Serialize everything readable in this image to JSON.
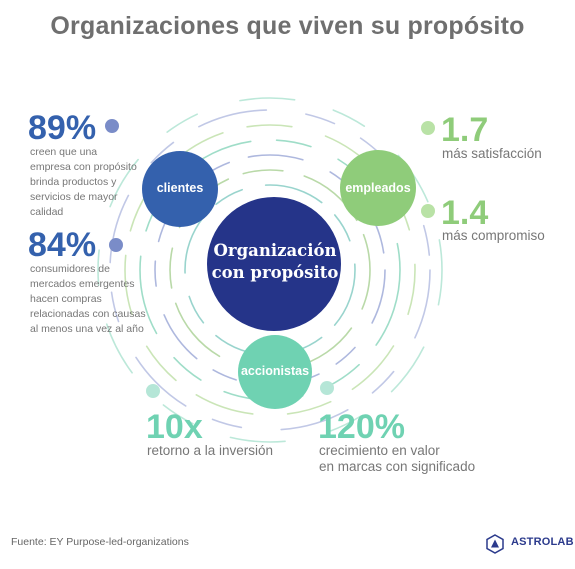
{
  "title": "Organizaciones que viven su propósito",
  "center": {
    "line1": "Organización",
    "line2": "con propósito"
  },
  "stakeholders": [
    {
      "label": "clientes",
      "color": "#3461ad"
    },
    {
      "label": "empleados",
      "color": "#8fcc7a"
    },
    {
      "label": "accionistas",
      "color": "#6fd2b2"
    }
  ],
  "center_color": "#253489",
  "stats": {
    "s89": {
      "value": "89%",
      "desc": [
        "creen que una",
        "empresa con propósito",
        "brinda productos y",
        "servicios de mayor",
        "calidad"
      ],
      "color": "#3461ad"
    },
    "s84": {
      "value": "84%",
      "desc": [
        "consumidores de",
        "mercados emergentes",
        "hacen compras",
        "relacionadas con causas",
        "al menos una vez al año"
      ],
      "color": "#3461ad"
    },
    "s17": {
      "value": "1.7",
      "desc": [
        "más satisfacción"
      ],
      "color": "#8fcc7a"
    },
    "s14": {
      "value": "1.4",
      "desc": [
        "más compromiso"
      ],
      "color": "#8fcc7a"
    },
    "s10x": {
      "value": "10x",
      "desc": [
        "retorno a la inversión"
      ],
      "color": "#6fd2b2"
    },
    "s120": {
      "value": "120%",
      "desc": [
        "crecimiento en valor",
        "en marcas con significado"
      ],
      "color": "#6fd2b2"
    }
  },
  "footer": "Fuente: EY Purpose-led-organizations",
  "logo": {
    "text": "ASTROLAB",
    "icon": "astrolab-logo-icon"
  }
}
